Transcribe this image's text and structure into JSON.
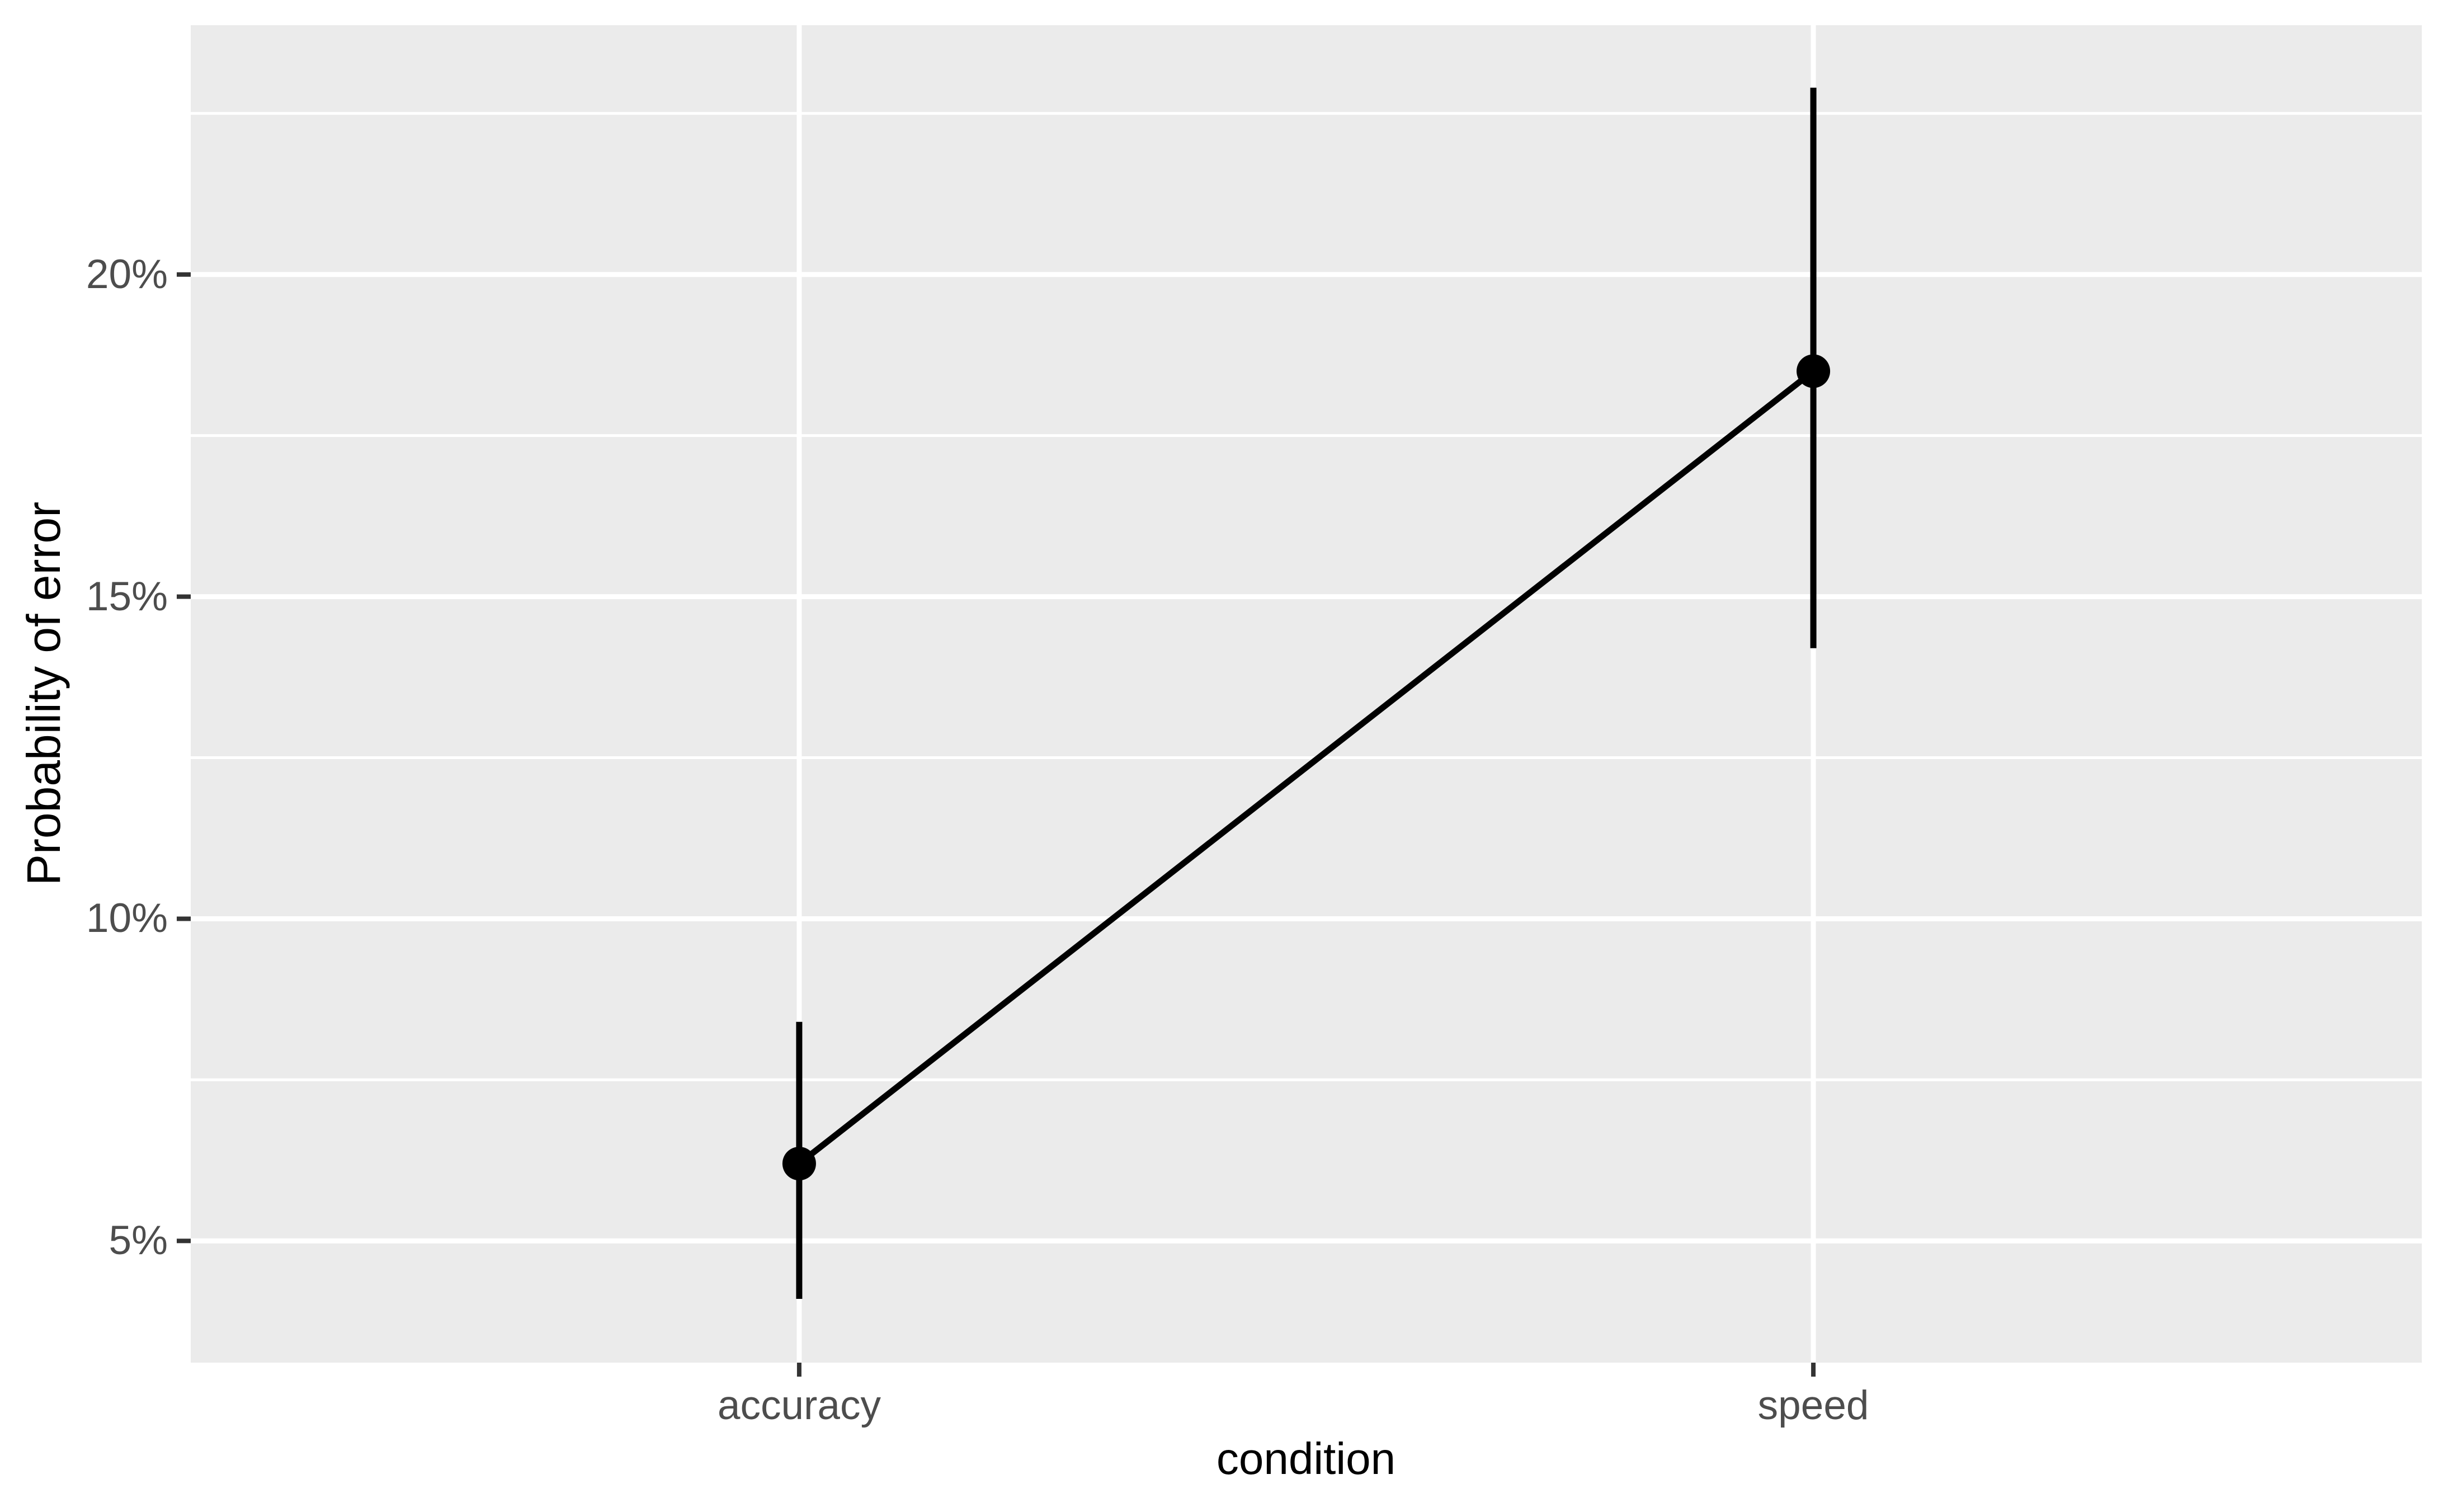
{
  "figure": {
    "background": "#FFFFFF",
    "panel_background": "#EBEBEB",
    "gridline_color": "#FFFFFF",
    "tick_mark_color": "#333333",
    "tick_label_color": "#4D4D4D",
    "axis_title_color": "#000000",
    "data_color": "#000000"
  },
  "chart_data": {
    "type": "line",
    "title": "",
    "xlabel": "condition",
    "ylabel": "Probability of error",
    "categories": [
      "accuracy",
      "speed"
    ],
    "series": [
      {
        "name": "probability_of_error",
        "values": [
          6.2,
          18.5
        ],
        "ci_lower": [
          4.1,
          14.2
        ],
        "ci_upper": [
          8.4,
          22.9
        ]
      }
    ],
    "y_ticks": {
      "values": [
        5,
        10,
        15,
        20
      ],
      "labels": [
        "5%",
        "10%",
        "15%",
        "20%"
      ]
    },
    "y_minor": [
      2.5,
      7.5,
      12.5,
      17.5,
      22.5
    ],
    "ylim": [
      3.11,
      23.87
    ],
    "grid": "major+minor horizontal, major vertical at categories",
    "legend": "none",
    "marker": "point-with-errorbar",
    "style": "ggplot2-grey"
  }
}
